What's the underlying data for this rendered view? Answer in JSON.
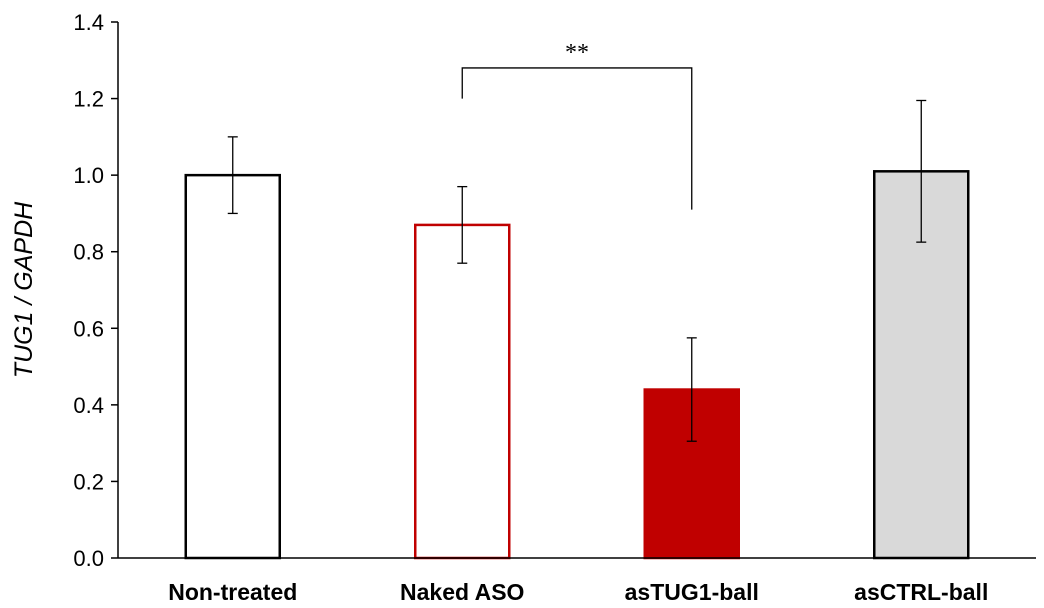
{
  "chart_data": {
    "type": "bar",
    "title": "",
    "xlabel": "",
    "ylabel": "TUG1 / GAPDH",
    "ylim": [
      0,
      1.4
    ],
    "yticks": [
      "0.0",
      "0.2",
      "0.4",
      "0.6",
      "0.8",
      "1.0",
      "1.2",
      "1.4"
    ],
    "grid": false,
    "categories": [
      "Non-treated",
      "Naked ASO",
      "asTUG1-ball",
      "asCTRL-ball"
    ],
    "values": [
      1.0,
      0.87,
      0.44,
      1.01
    ],
    "error_bars": [
      0.1,
      0.1,
      0.135,
      0.185
    ],
    "styles": [
      {
        "fill": "#ffffff",
        "stroke": "#000000"
      },
      {
        "fill": "#ffffff",
        "stroke": "#c00000"
      },
      {
        "fill": "#c00000",
        "stroke": "#c00000"
      },
      {
        "fill": "#d9d9d9",
        "stroke": "#000000"
      }
    ],
    "annotations": [
      {
        "type": "significance-bracket",
        "from": "Naked ASO",
        "to": "asTUG1-ball",
        "label": "**",
        "bracket_y": 1.28,
        "left_end_y": 1.2,
        "right_end_y": 0.91
      }
    ]
  }
}
